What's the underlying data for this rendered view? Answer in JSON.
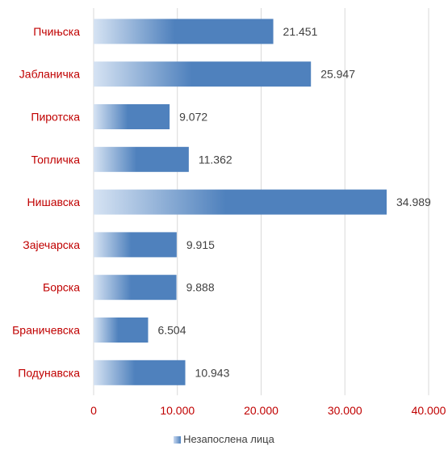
{
  "chart_data": {
    "type": "bar",
    "orientation": "horizontal",
    "categories": [
      "Пчињска",
      "Јабланичка",
      "Пиротска",
      "Топличка",
      "Нишавска",
      "Зајечарска",
      "Борска",
      "Браничевска",
      "Подунавска"
    ],
    "series": [
      {
        "name": "Незапослена лица",
        "values": [
          21451,
          25947,
          9072,
          11362,
          34989,
          9915,
          9888,
          6504,
          10943
        ],
        "labels": [
          "21.451",
          "25.947",
          "9.072",
          "11.362",
          "34.989",
          "9.915",
          "9.888",
          "6.504",
          "10.943"
        ]
      }
    ],
    "x_ticks": [
      "0",
      "10.000",
      "20.000",
      "30.000",
      "40.000"
    ],
    "xlim": [
      0,
      40000
    ],
    "grid": "vertical",
    "legend_position": "bottom",
    "colors": {
      "bar": "#4f81bd",
      "bar_light": "#d6e3f3",
      "category_text": "#c00000",
      "tick_text": "#c00000",
      "value_text": "#404040",
      "grid": "#d9d9d9"
    }
  }
}
